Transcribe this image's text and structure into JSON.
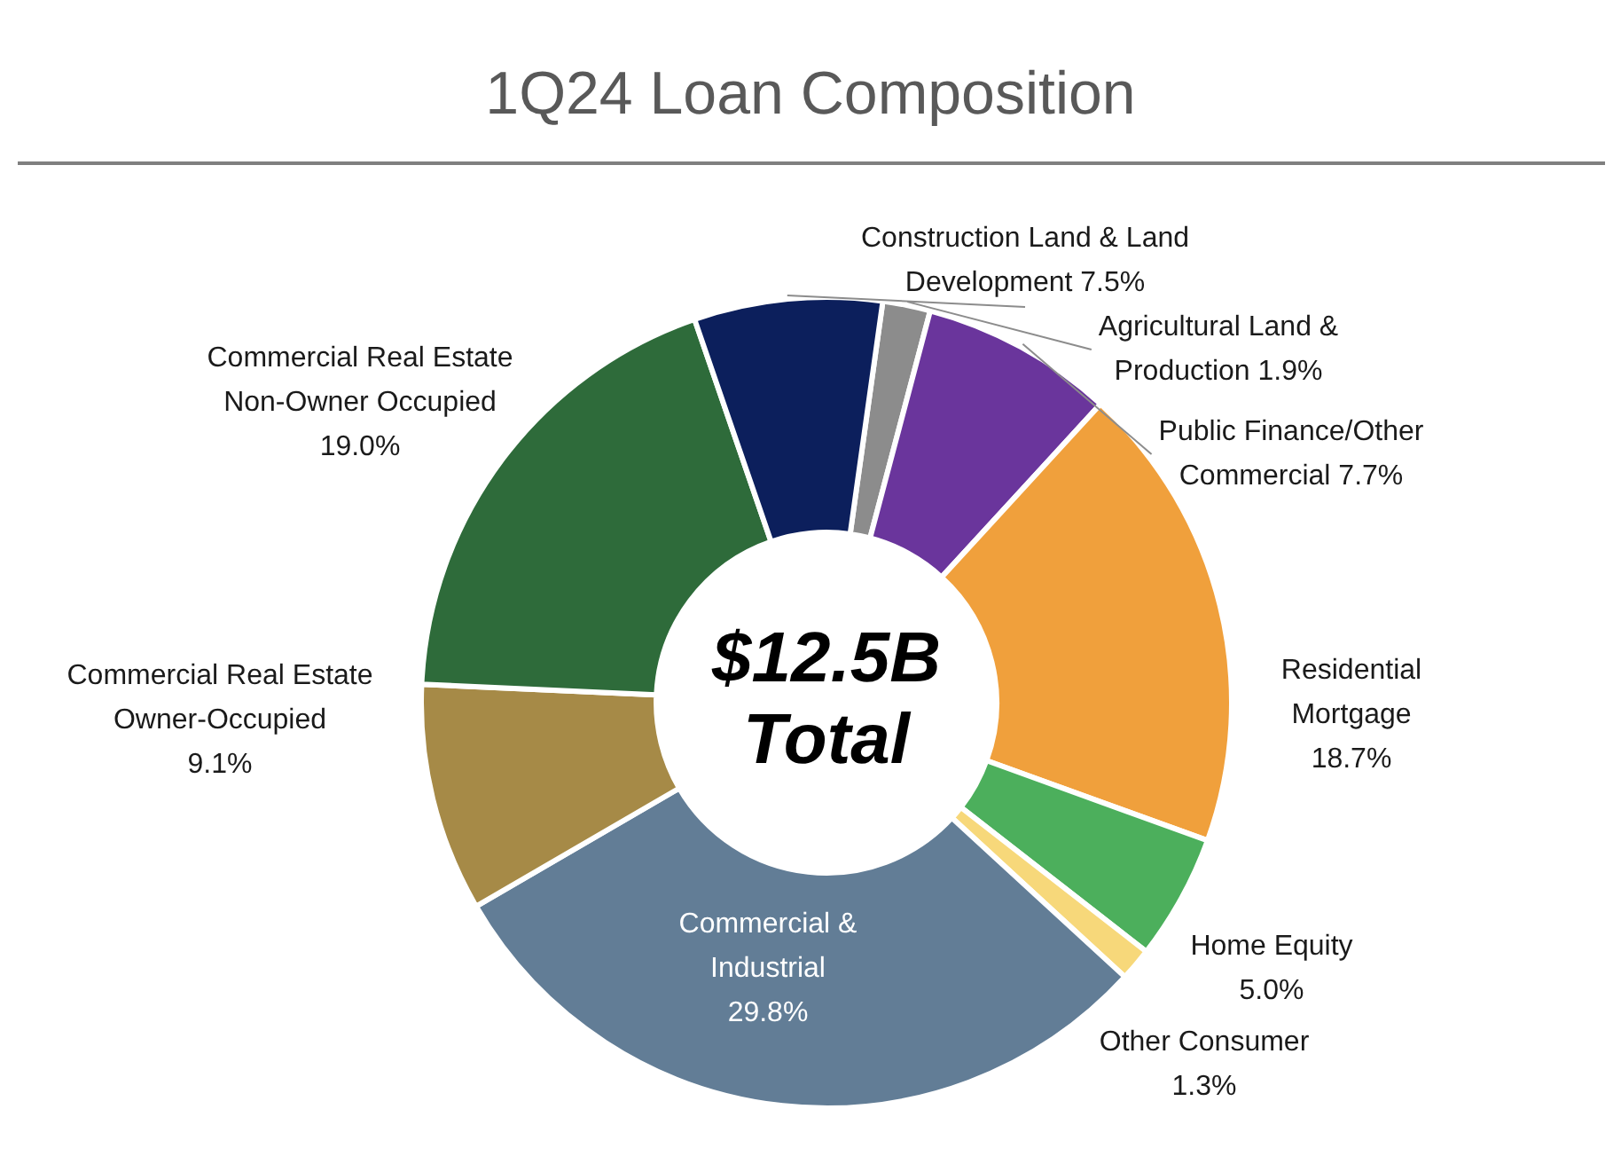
{
  "chart_data": {
    "type": "donut",
    "title": "1Q24 Loan Composition",
    "categories": [
      "Agricultural Land & Production",
      "Public Finance/Other Commercial",
      "Residential Mortgage",
      "Home Equity",
      "Other Consumer",
      "Commercial & Industrial",
      "Commercial Real Estate Owner-Occupied",
      "Commercial Real Estate Non-Owner Occupied",
      "Construction Land & Land Development"
    ],
    "values": [
      1.9,
      7.7,
      18.7,
      5.0,
      1.3,
      29.8,
      9.1,
      19.0,
      7.5
    ],
    "colors": [
      "#8c8c8c",
      "#6a359c",
      "#f0a03c",
      "#4caf5c",
      "#f7d87a",
      "#627d96",
      "#a68a47",
      "#2e6b3a",
      "#0c1f5c"
    ],
    "data_labels": true,
    "value_labels": [
      "1.9%",
      "7.7%",
      "18.7%",
      "5.0%",
      "1.3%",
      "29.8%",
      "9.1%",
      "19.0%",
      "7.5%"
    ],
    "legend": false,
    "annotations": [
      "$12.5B Total"
    ]
  }
}
